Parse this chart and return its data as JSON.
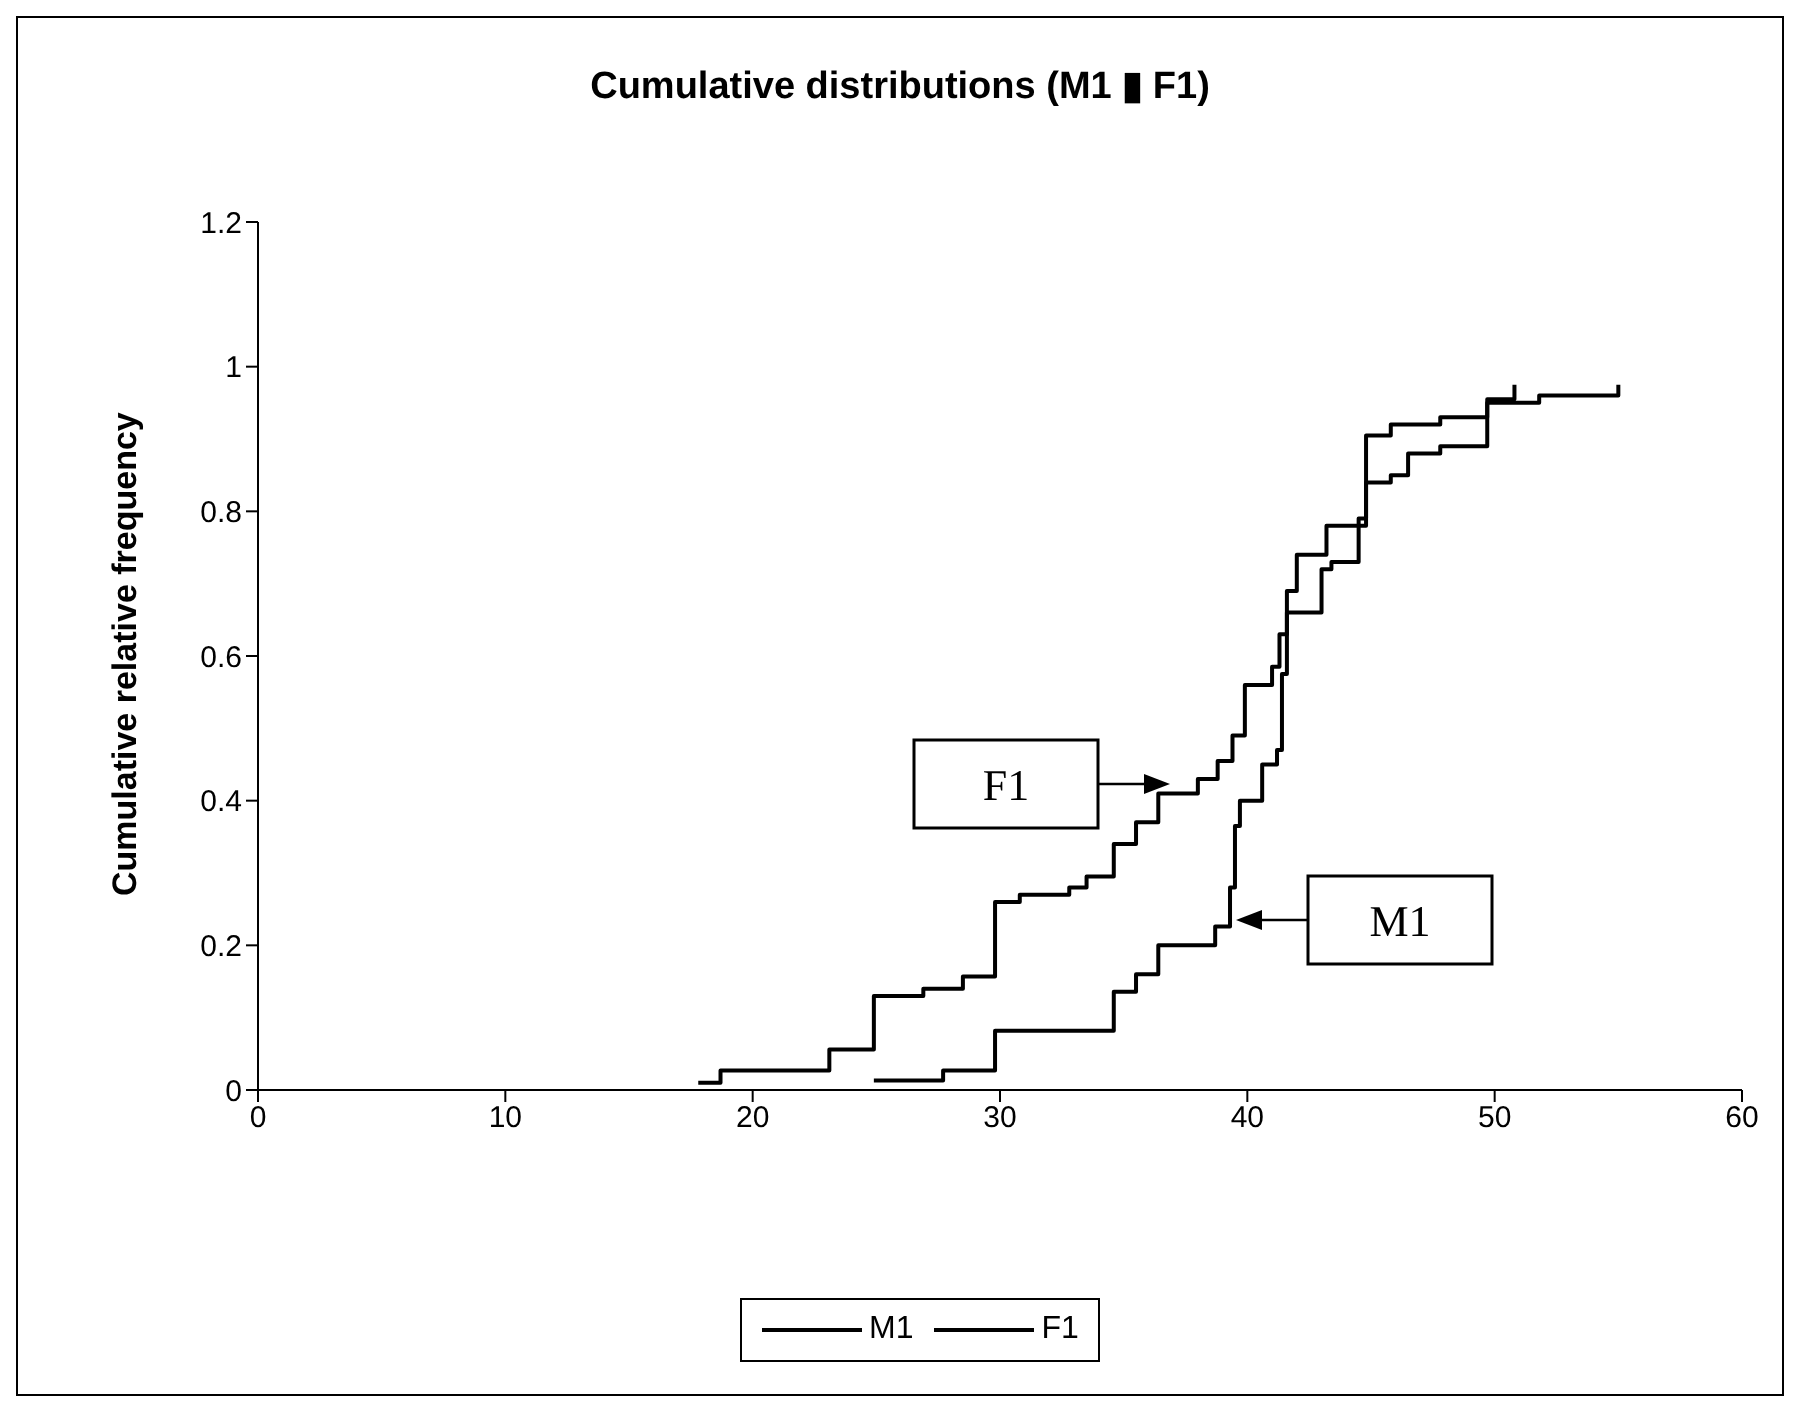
{
  "chart_data": {
    "type": "step",
    "title": "Cumulative distributions (M1 ▮ F1)",
    "xlabel": null,
    "ylabel": "Cumulative relative frequency",
    "xlim": [
      0,
      60
    ],
    "xticks": [
      0,
      10,
      20,
      30,
      40,
      50,
      60
    ],
    "ylim": [
      0,
      1.2
    ],
    "yticks": [
      0,
      0.2,
      0.4,
      0.6,
      0.8,
      1,
      1.2
    ],
    "grid": false,
    "legend": "bottom",
    "marker": "none",
    "line_style": "solid",
    "series": [
      {
        "name": "M1",
        "color": "#000000",
        "x": [
          24.9,
          27.7,
          29.8,
          34.6,
          35.5,
          36.4,
          38.7,
          39.3,
          39.5,
          39.7,
          40.6,
          41.2,
          41.4,
          41.6,
          43.0,
          43.4,
          44.5,
          44.8,
          45.8,
          46.5,
          47.8,
          49.7,
          51.8,
          55.0
        ],
        "values": [
          0.013,
          0.027,
          0.082,
          0.136,
          0.16,
          0.2,
          0.226,
          0.28,
          0.365,
          0.4,
          0.45,
          0.47,
          0.575,
          0.66,
          0.72,
          0.73,
          0.79,
          0.84,
          0.85,
          0.88,
          0.89,
          0.95,
          0.96,
          0.975
        ]
      },
      {
        "name": "F1",
        "color": "#000000",
        "x": [
          17.8,
          18.7,
          23.1,
          24.9,
          26.9,
          28.5,
          29.8,
          30.8,
          32.8,
          33.5,
          34.6,
          35.5,
          36.4,
          38.0,
          38.8,
          39.4,
          39.9,
          41.0,
          41.3,
          41.6,
          42.0,
          43.2,
          44.8,
          45.8,
          47.8,
          49.7,
          50.8
        ],
        "values": [
          0.01,
          0.027,
          0.056,
          0.13,
          0.14,
          0.157,
          0.26,
          0.27,
          0.28,
          0.295,
          0.34,
          0.37,
          0.41,
          0.43,
          0.455,
          0.49,
          0.56,
          0.585,
          0.63,
          0.69,
          0.74,
          0.78,
          0.905,
          0.92,
          0.93,
          0.955,
          0.975
        ]
      }
    ],
    "annotations": [
      "F1",
      "M1"
    ]
  }
}
